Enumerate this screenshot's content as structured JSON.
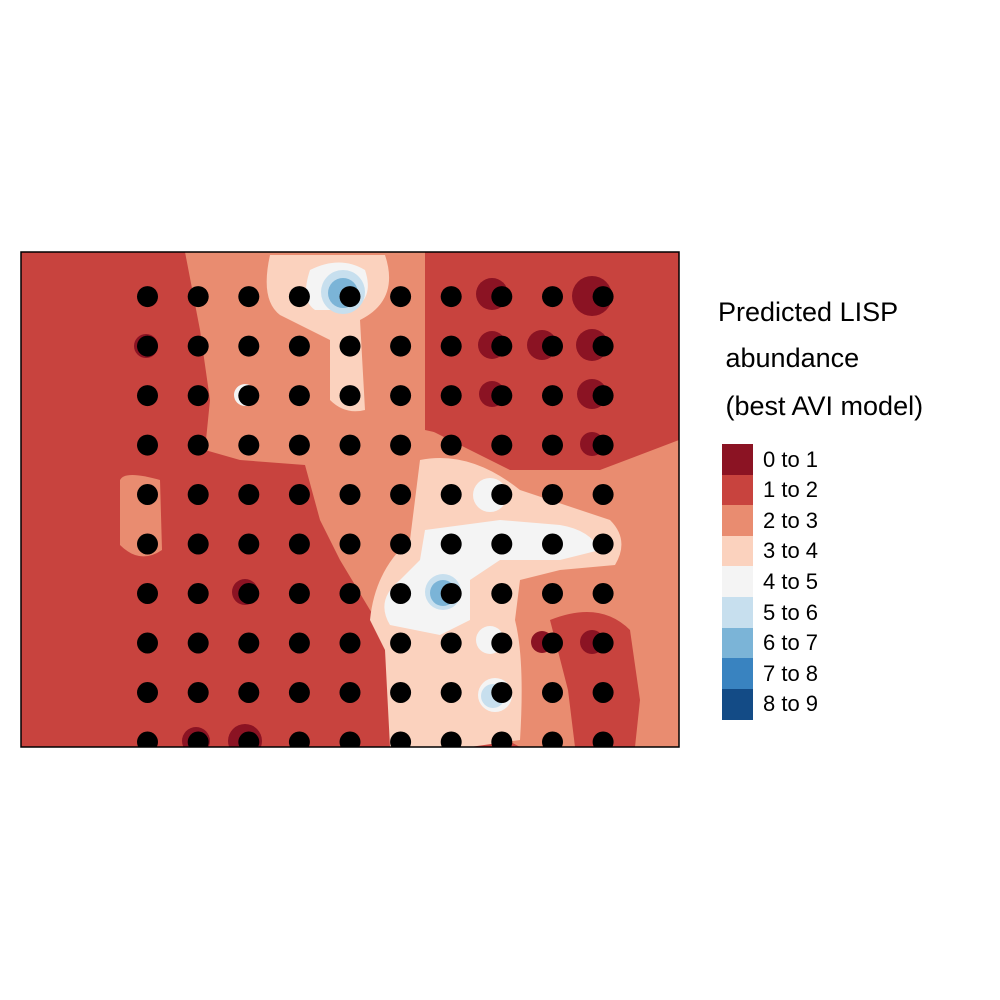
{
  "chart_data": {
    "type": "heatmap",
    "title": "",
    "xlabel": "",
    "ylabel": "",
    "grid": false,
    "legend": {
      "title_lines": [
        "Predicted LISP",
        " abundance",
        " (best AVI model)"
      ],
      "placement": "right",
      "bins": [
        {
          "label": "0 to 1",
          "color": "#8B1323"
        },
        {
          "label": "1 to 2",
          "color": "#C8433E"
        },
        {
          "label": "2 to 3",
          "color": "#E98C70"
        },
        {
          "label": "3 to 4",
          "color": "#FBD2BE"
        },
        {
          "label": "4 to 5",
          "color": "#F4F4F4"
        },
        {
          "label": "5 to 6",
          "color": "#C7DFEE"
        },
        {
          "label": "6 to 7",
          "color": "#7BB4D7"
        },
        {
          "label": "7 to 8",
          "color": "#3983C0"
        },
        {
          "label": "8 to 9",
          "color": "#134B86"
        }
      ]
    },
    "x_range": [
      0,
      13
    ],
    "y_range": [
      0,
      10
    ],
    "survey_points": {
      "columns": [
        2.5,
        3.5,
        4.5,
        5.5,
        6.5,
        7.5,
        8.5,
        9.5,
        10.5,
        11.5
      ],
      "rows": [
        {
          "y": 9.1,
          "present": [
            1,
            1,
            1,
            1,
            1,
            1,
            1,
            1,
            1,
            1
          ]
        },
        {
          "y": 8.1,
          "present": [
            1,
            1,
            1,
            1,
            1,
            1,
            1,
            1,
            1,
            1
          ]
        },
        {
          "y": 7.1,
          "present": [
            1,
            1,
            1,
            1,
            1,
            1,
            1,
            1,
            1,
            1
          ]
        },
        {
          "y": 6.1,
          "present": [
            1,
            1,
            1,
            1,
            1,
            1,
            1,
            1,
            1,
            1
          ]
        },
        {
          "y": 5.1,
          "present": [
            1,
            1,
            1,
            1,
            1,
            1,
            1,
            1,
            1,
            1
          ]
        },
        {
          "y": 4.1,
          "present": [
            1,
            1,
            1,
            1,
            1,
            1,
            1,
            1,
            1,
            1
          ]
        },
        {
          "y": 3.1,
          "present": [
            1,
            1,
            1,
            1,
            1,
            1,
            1,
            1,
            1,
            1
          ]
        },
        {
          "y": 2.1,
          "present": [
            1,
            1,
            1,
            1,
            1,
            1,
            1,
            1,
            1,
            1
          ]
        },
        {
          "y": 1.1,
          "present": [
            1,
            1,
            1,
            1,
            1,
            1,
            1,
            1,
            1,
            1
          ]
        },
        {
          "y": 0.1,
          "present": [
            1,
            1,
            1,
            1,
            1,
            1,
            1,
            1,
            1,
            1
          ]
        }
      ]
    },
    "surface_classes": [
      {
        "bin": 1,
        "region": "background"
      },
      {
        "bin": 2,
        "region": "central-west band"
      },
      {
        "bin": 2,
        "region": "lower-right lobe"
      },
      {
        "bin": 3,
        "region": "central light zone"
      },
      {
        "bin": 4,
        "region": "hotspots near center"
      },
      {
        "bin": 5,
        "region": "peaks"
      },
      {
        "bin": 0,
        "region": "upper-right low cells"
      }
    ]
  }
}
